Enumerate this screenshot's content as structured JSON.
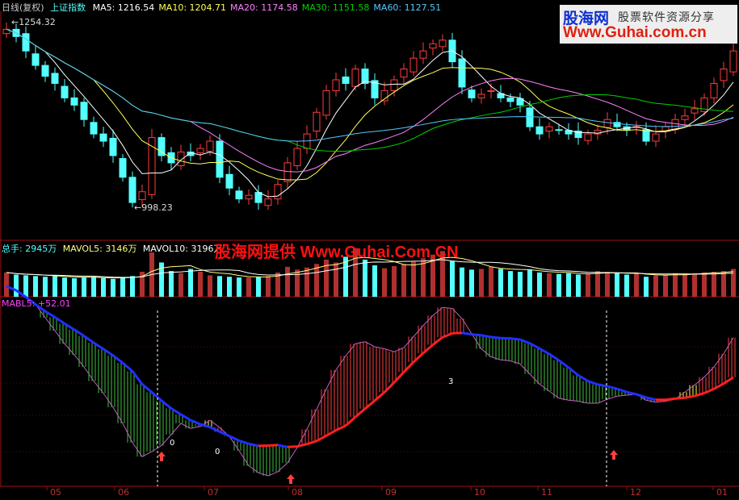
{
  "header": {
    "period": "日线(复权)",
    "symbol": "上证指数",
    "ma": [
      {
        "label": "MA5: 1216.54",
        "color": "#ffffff"
      },
      {
        "label": "MA10: 1204.71",
        "color": "#ffff54"
      },
      {
        "label": "MA20: 1174.58",
        "color": "#ff80ff"
      },
      {
        "label": "MA30: 1151.58",
        "color": "#00d000"
      },
      {
        "label": "MA60: 1127.51",
        "color": "#54c8ff"
      }
    ]
  },
  "volume_header": {
    "total": "总手: 2945万",
    "mavol5": "MAVOL5: 3146万",
    "mavol10": "MAVOL10: 3196万"
  },
  "indicator_header": {
    "label": "MABL5: +52.01"
  },
  "watermark": "股海网提供 Www.Guhai.Com.CN",
  "logo": {
    "name": "股海网",
    "tagline": "股票软件资源分享",
    "url": "Www.Guhai.com.cn"
  },
  "colors": {
    "up": "#ff3c3c",
    "down": "#54ffff",
    "border": "#a01010",
    "ind_line": "#c060c0",
    "fall_base": "#2030ff",
    "rise_base": "#ff2020",
    "fall_bar": "#40c040",
    "rise_bar": "#ff4040",
    "signal_bar": "#ffff40"
  },
  "chart_data": {
    "type": "candlestick",
    "max_label": "1254.32",
    "min_label": "998.23",
    "max": 1254.32,
    "min": 998.23,
    "x_ticks": [
      "05",
      "06",
      "07",
      "08",
      "09",
      "10",
      "11",
      "12",
      "01"
    ],
    "close": [
      1245,
      1235,
      1215,
      1195,
      1180,
      1170,
      1150,
      1140,
      1120,
      1100,
      1090,
      1070,
      1040,
      1005,
      1020,
      1095,
      1070,
      1060,
      1075,
      1070,
      1080,
      1090,
      1040,
      1025,
      1010,
      1015,
      1005,
      1010,
      1030,
      1060,
      1080,
      1100,
      1130,
      1160,
      1175,
      1170,
      1190,
      1170,
      1150,
      1160,
      1175,
      1190,
      1205,
      1215,
      1225,
      1230,
      1200,
      1165,
      1150,
      1155,
      1160,
      1150,
      1145,
      1140,
      1110,
      1100,
      1110,
      1105,
      1100,
      1095,
      1100,
      1105,
      1120,
      1110,
      1105,
      1110,
      1090,
      1100,
      1110,
      1120,
      1125,
      1135,
      1150,
      1170,
      1190,
      1215
    ],
    "volume": [
      3400,
      3100,
      3000,
      2900,
      2800,
      2900,
      2700,
      2600,
      2700,
      2800,
      2600,
      2500,
      2700,
      2900,
      3500,
      6200,
      4800,
      3600,
      3300,
      3900,
      3500,
      3000,
      2900,
      2800,
      2700,
      2700,
      2800,
      2900,
      3400,
      4200,
      3800,
      4100,
      4600,
      5200,
      4800,
      5600,
      6800,
      5200,
      4400,
      4000,
      4300,
      4600,
      4900,
      5400,
      5900,
      6400,
      5000,
      4100,
      3800,
      3900,
      4200,
      3900,
      3600,
      3500,
      3800,
      3400,
      3300,
      3200,
      3300,
      3100,
      3200,
      3600,
      3500,
      3300,
      3100,
      3200,
      2800,
      3000,
      3100,
      3300,
      3200,
      3300,
      3400,
      3500,
      3600,
      3900
    ],
    "markers": {
      "labels": [
        "0",
        "0",
        "3"
      ],
      "signal_dates": [
        "06",
        "08",
        "12"
      ]
    }
  }
}
